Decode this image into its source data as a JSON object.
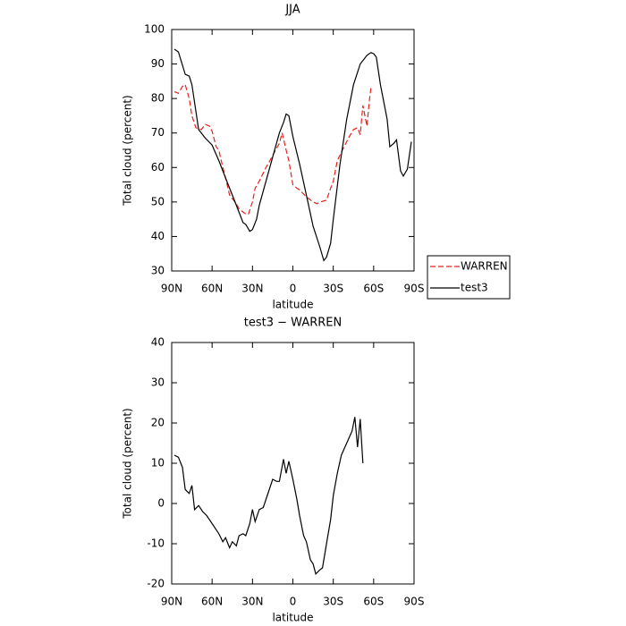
{
  "chart_data": [
    {
      "type": "line",
      "title": "JJA",
      "xlabel": "latitude",
      "ylabel": "Total cloud (percent)",
      "xlim": [
        90,
        -90
      ],
      "xticks": [
        {
          "value": 90,
          "label": "90N"
        },
        {
          "value": 60,
          "label": "60N"
        },
        {
          "value": 30,
          "label": "30N"
        },
        0,
        {
          "value": -30,
          "label": "30S"
        },
        {
          "value": -60,
          "label": "60S"
        },
        {
          "value": -90,
          "label": "90S"
        }
      ],
      "ylim": [
        30,
        100
      ],
      "yticks": [
        30,
        40,
        50,
        60,
        70,
        80,
        90,
        100
      ],
      "legend": "right",
      "series": [
        {
          "name": "WARREN",
          "color": "#e8201c",
          "linestyle": "dashed",
          "x": [
            88,
            85,
            82,
            80,
            77,
            75,
            72,
            68,
            65,
            62,
            60,
            57,
            55,
            52,
            50,
            47,
            45,
            42,
            40,
            35,
            33,
            30,
            28,
            25,
            20,
            17,
            15,
            10,
            8,
            5,
            3,
            0,
            -3,
            -5,
            -10,
            -15,
            -18,
            -20,
            -25,
            -28,
            -30,
            -33,
            -38,
            -42,
            -45,
            -48,
            -50,
            -52,
            -55,
            -57,
            -58
          ],
          "values": [
            82,
            81.5,
            83.5,
            84,
            80,
            75,
            71.5,
            71,
            72.5,
            72,
            70.5,
            66,
            65,
            60,
            57,
            52,
            51,
            49.5,
            48,
            46.5,
            46.5,
            50,
            54,
            56,
            60,
            62,
            63.5,
            67,
            70,
            65,
            62,
            55,
            54,
            53.5,
            51.5,
            50,
            49.5,
            50,
            50.5,
            54,
            56,
            62,
            66,
            69,
            71,
            71.5,
            69.5,
            78,
            72,
            80,
            83
          ]
        },
        {
          "name": "test3",
          "color": "#000000",
          "linestyle": "solid",
          "x": [
            88,
            85,
            80,
            77,
            75,
            70,
            65,
            60,
            55,
            50,
            45,
            40,
            37,
            35,
            32,
            30,
            27,
            25,
            20,
            15,
            10,
            7,
            5,
            3,
            0,
            -5,
            -10,
            -15,
            -20,
            -23,
            -25,
            -28,
            -30,
            -35,
            -40,
            -45,
            -50,
            -55,
            -58,
            -60,
            -62,
            -65,
            -70,
            -72,
            -75,
            -77,
            -80,
            -82,
            -85,
            -88
          ],
          "values": [
            94.3,
            93.5,
            87,
            86.5,
            84,
            71,
            68.5,
            66.5,
            62,
            57,
            52,
            47,
            44,
            43.5,
            41.5,
            42,
            45,
            49,
            56,
            63,
            70,
            73,
            75.5,
            75,
            69,
            61,
            52,
            43,
            37,
            33,
            34,
            38,
            45,
            61,
            74,
            84,
            90,
            92.5,
            93.3,
            93,
            92,
            84,
            74,
            66,
            67,
            68,
            59,
            57.5,
            59.5,
            67.5
          ]
        }
      ]
    },
    {
      "type": "line",
      "title": "test3 − WARREN",
      "xlabel": "latitude",
      "ylabel": "Total cloud (percent)",
      "xlim": [
        90,
        -90
      ],
      "xticks": [
        {
          "value": 90,
          "label": "90N"
        },
        {
          "value": 60,
          "label": "60N"
        },
        {
          "value": 30,
          "label": "30N"
        },
        0,
        {
          "value": -30,
          "label": "30S"
        },
        {
          "value": -60,
          "label": "60S"
        },
        {
          "value": -90,
          "label": "90S"
        }
      ],
      "ylim": [
        -20,
        40
      ],
      "yticks": [
        -20,
        -10,
        0,
        10,
        20,
        30,
        40
      ],
      "series": [
        {
          "color": "#000000",
          "linestyle": "solid",
          "x": [
            88,
            85,
            82,
            80,
            77,
            75,
            73,
            70,
            67,
            64,
            60,
            57,
            55,
            52,
            50,
            47,
            45,
            42,
            40,
            37,
            35,
            32,
            30,
            28,
            25,
            22,
            18,
            15,
            12,
            10,
            7,
            5,
            3,
            0,
            -3,
            -5,
            -8,
            -10,
            -13,
            -15,
            -17,
            -20,
            -22,
            -25,
            -28,
            -30,
            -33,
            -36,
            -40,
            -44,
            -46,
            -48,
            -50,
            -52
          ],
          "values": [
            12,
            11.5,
            9,
            3.5,
            2.5,
            4.5,
            -1.5,
            -0.5,
            -2,
            -3,
            -5,
            -6.5,
            -7.5,
            -9.5,
            -8.5,
            -11,
            -9.5,
            -10.5,
            -8,
            -7.5,
            -8,
            -5,
            -1.5,
            -4.5,
            -1.5,
            -1,
            3,
            6,
            5.5,
            5.5,
            11,
            7.5,
            10.5,
            6,
            1,
            -3,
            -8,
            -9.5,
            -14,
            -15,
            -17.5,
            -16.5,
            -16,
            -10,
            -4,
            2,
            7.5,
            12,
            15,
            18,
            21.5,
            14,
            21,
            10
          ]
        }
      ]
    }
  ]
}
